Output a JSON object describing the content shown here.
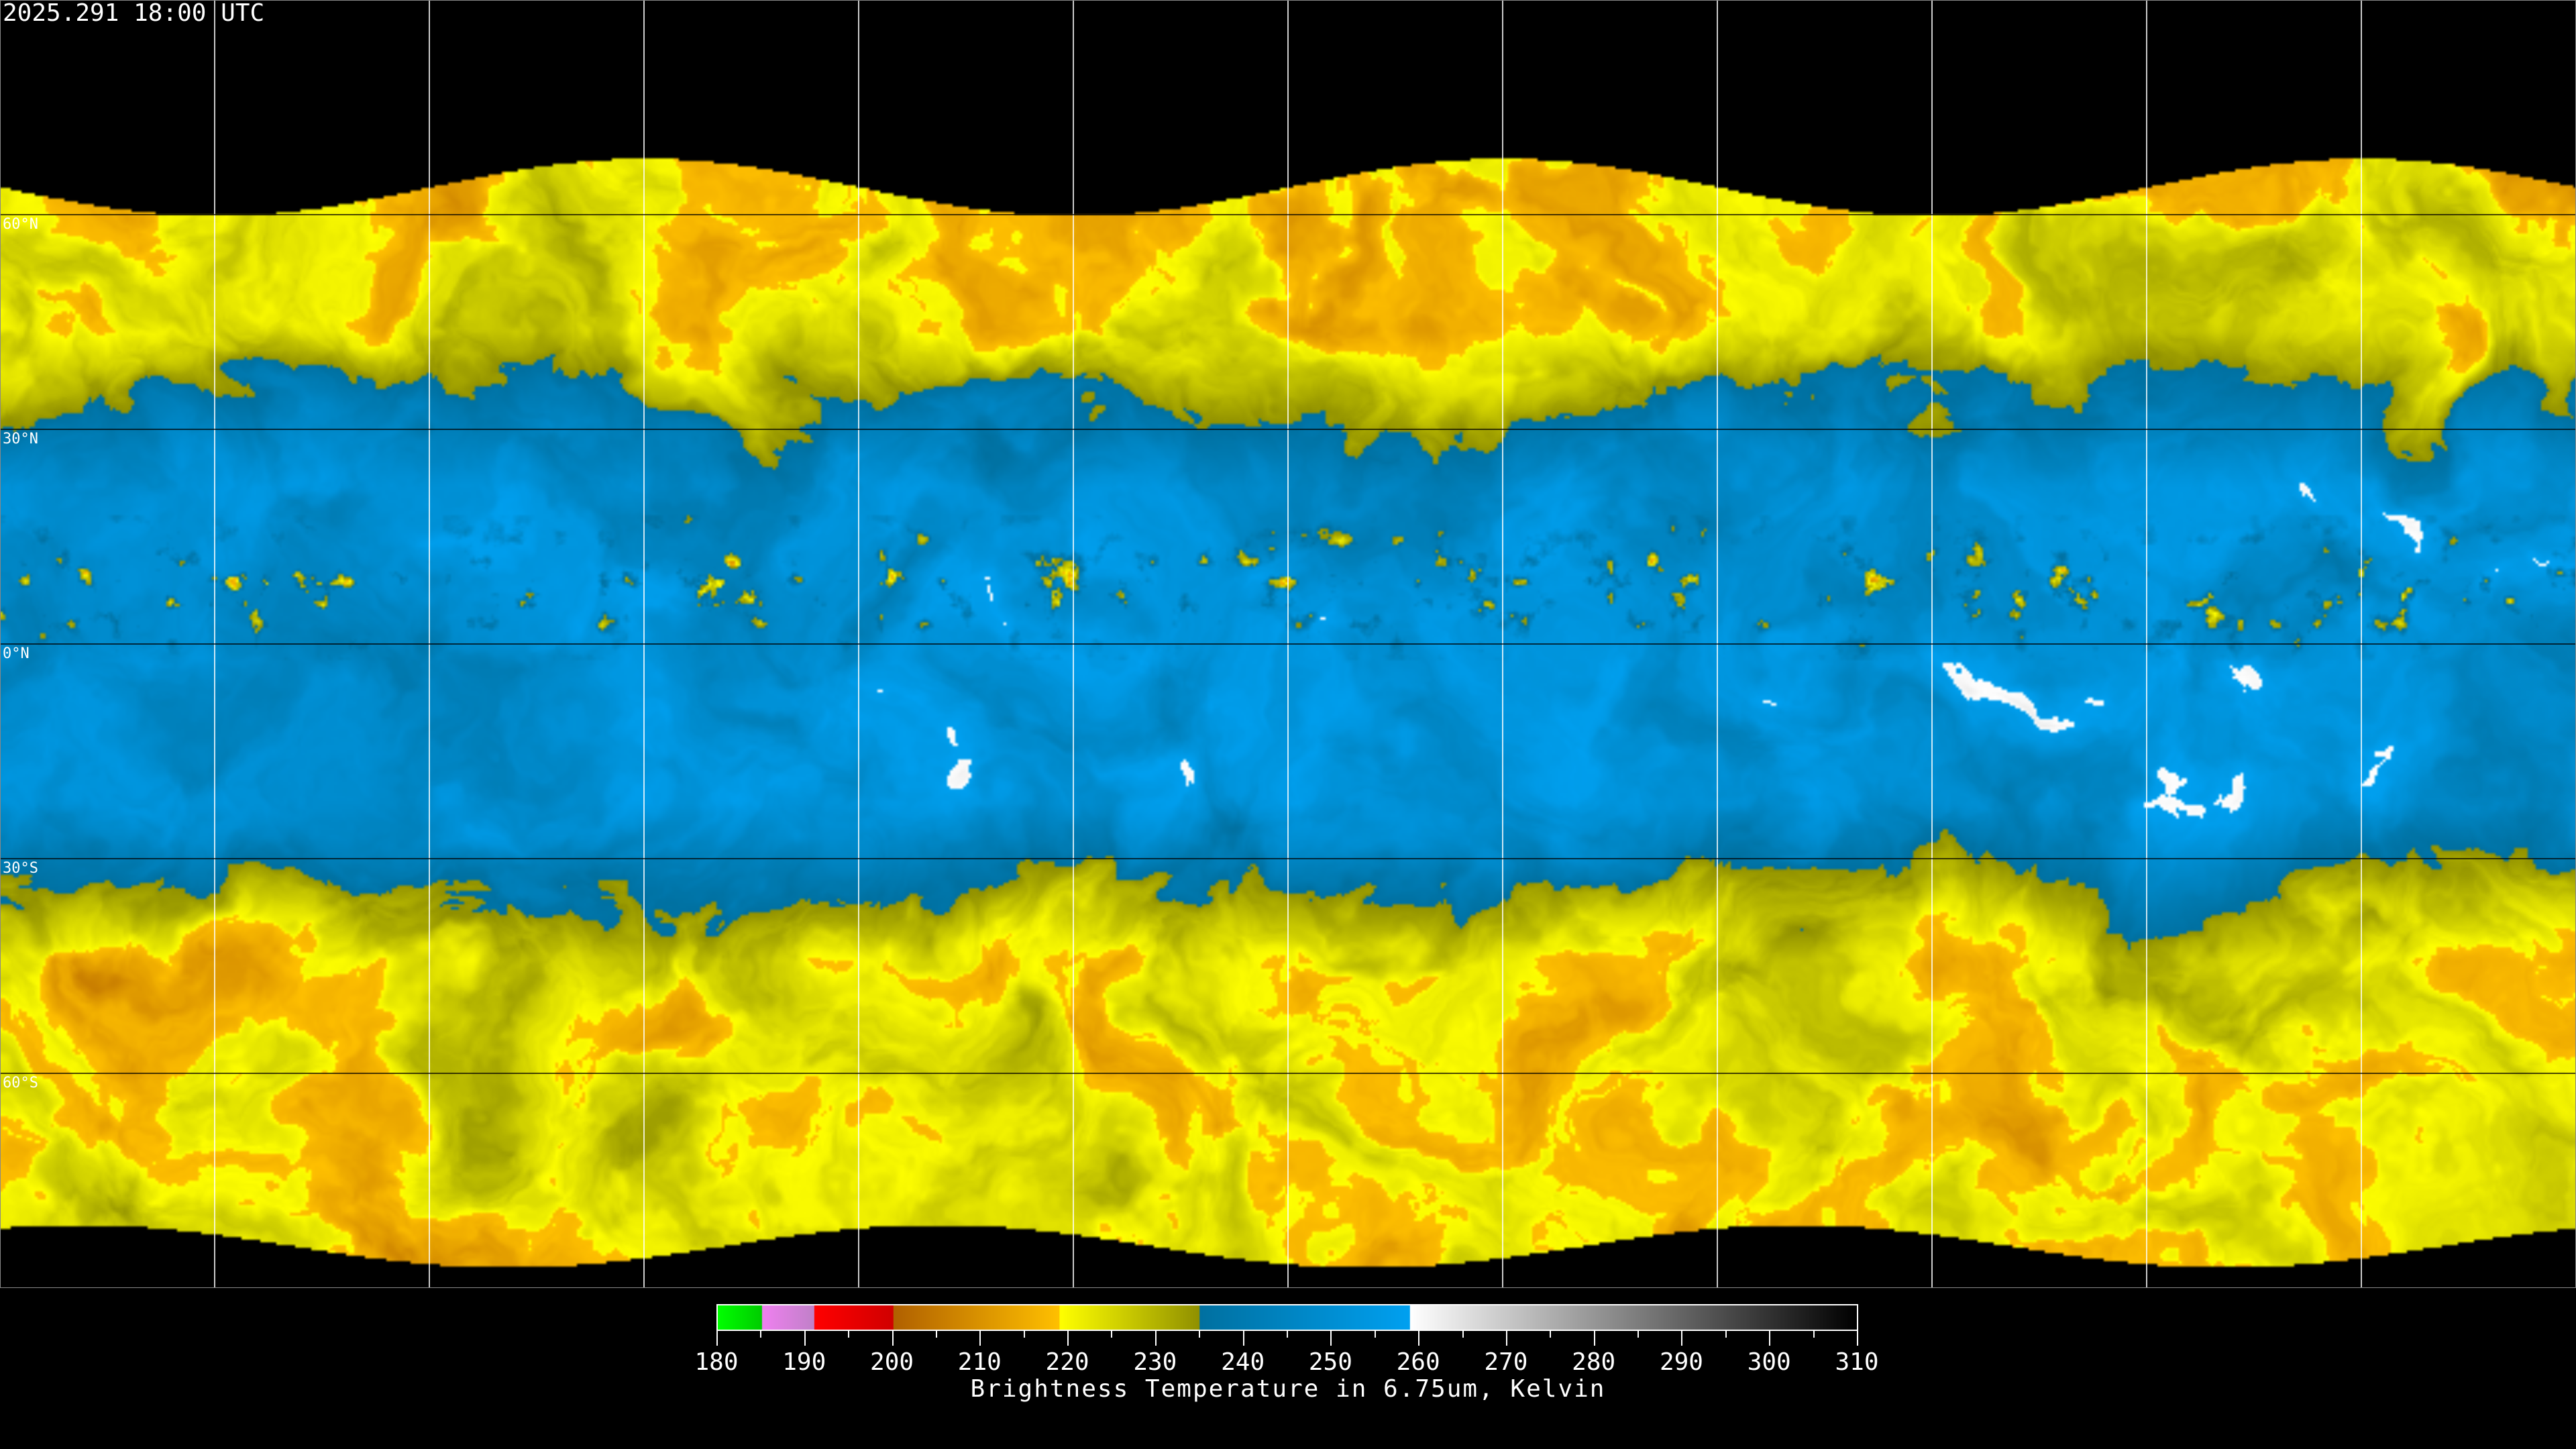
{
  "title": "2025.291 18:00 UTC",
  "lat_labels": [
    "60°N",
    "30°N",
    "0°N",
    "30°S",
    "60°S"
  ],
  "colorbar": {
    "label": "Brightness Temperature in 6.75um, Kelvin",
    "min": 180,
    "max": 310,
    "tick_labels": [
      "180",
      "190",
      "200",
      "210",
      "220",
      "230",
      "240",
      "250",
      "260",
      "270",
      "280",
      "290",
      "300",
      "310"
    ],
    "segments": [
      {
        "from": 180,
        "to": 185,
        "start": "#00ff00",
        "end": "#00cc00"
      },
      {
        "from": 185,
        "to": 191,
        "start": "#f080f0",
        "end": "#c080c8"
      },
      {
        "from": 191,
        "to": 200,
        "start": "#ff0000",
        "end": "#d00000"
      },
      {
        "from": 200,
        "to": 219,
        "start": "#b06000",
        "end": "#ffc000"
      },
      {
        "from": 219,
        "to": 235,
        "start": "#ffff00",
        "end": "#909000"
      },
      {
        "from": 235,
        "to": 259,
        "start": "#0070a0",
        "end": "#00a0f0"
      },
      {
        "from": 259,
        "to": 310,
        "start": "#ffffff",
        "end": "#000000"
      }
    ]
  },
  "colors": {
    "background": "#000000",
    "ocean_dry": "#00a0e8",
    "moist": "#e8e800",
    "grid": "#ffffff"
  }
}
